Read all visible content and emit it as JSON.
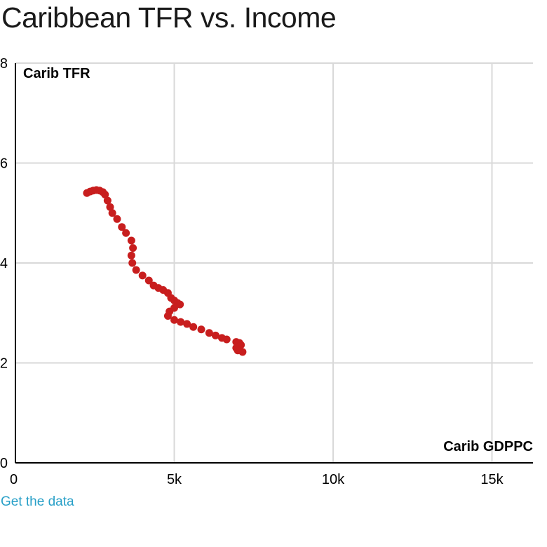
{
  "page": {
    "title": "Caribbean TFR vs. Income",
    "link_label": "Get the data"
  },
  "chart_data": {
    "type": "scatter",
    "title": "Caribbean TFR vs. Income",
    "xlabel": "Carib GDPPC",
    "ylabel": "Carib TFR",
    "xlim": [
      0,
      16000
    ],
    "ylim": [
      0,
      8
    ],
    "x_ticks": [
      0,
      5000,
      10000,
      15000
    ],
    "x_tick_labels": [
      "0",
      "5k",
      "10k",
      "15k"
    ],
    "y_ticks": [
      0,
      2,
      4,
      6,
      8
    ],
    "y_tick_labels": [
      "0",
      "2",
      "4",
      "6",
      "8"
    ],
    "grid": true,
    "color": "#c81e1e",
    "series": [
      {
        "points": [
          [
            2250,
            5.4
          ],
          [
            2350,
            5.43
          ],
          [
            2450,
            5.45
          ],
          [
            2550,
            5.46
          ],
          [
            2650,
            5.45
          ],
          [
            2750,
            5.42
          ],
          [
            2820,
            5.37
          ],
          [
            2900,
            5.25
          ],
          [
            2980,
            5.12
          ],
          [
            3050,
            5.0
          ],
          [
            3200,
            4.88
          ],
          [
            3350,
            4.72
          ],
          [
            3480,
            4.6
          ],
          [
            3650,
            4.45
          ],
          [
            3700,
            4.3
          ],
          [
            3650,
            4.15
          ],
          [
            3680,
            4.0
          ],
          [
            3800,
            3.86
          ],
          [
            4000,
            3.75
          ],
          [
            4200,
            3.65
          ],
          [
            4350,
            3.55
          ],
          [
            4500,
            3.5
          ],
          [
            4650,
            3.46
          ],
          [
            4800,
            3.4
          ],
          [
            4900,
            3.3
          ],
          [
            5000,
            3.25
          ],
          [
            5100,
            3.2
          ],
          [
            5180,
            3.17
          ],
          [
            5000,
            3.1
          ],
          [
            4850,
            3.03
          ],
          [
            4800,
            2.94
          ],
          [
            5000,
            2.86
          ],
          [
            5200,
            2.82
          ],
          [
            5400,
            2.78
          ],
          [
            5600,
            2.72
          ],
          [
            5850,
            2.67
          ],
          [
            6100,
            2.6
          ],
          [
            6300,
            2.55
          ],
          [
            6500,
            2.5
          ],
          [
            6650,
            2.47
          ],
          [
            6950,
            2.42
          ],
          [
            7050,
            2.4
          ],
          [
            7100,
            2.36
          ],
          [
            6950,
            2.3
          ],
          [
            7000,
            2.25
          ],
          [
            7150,
            2.22
          ]
        ]
      }
    ]
  }
}
